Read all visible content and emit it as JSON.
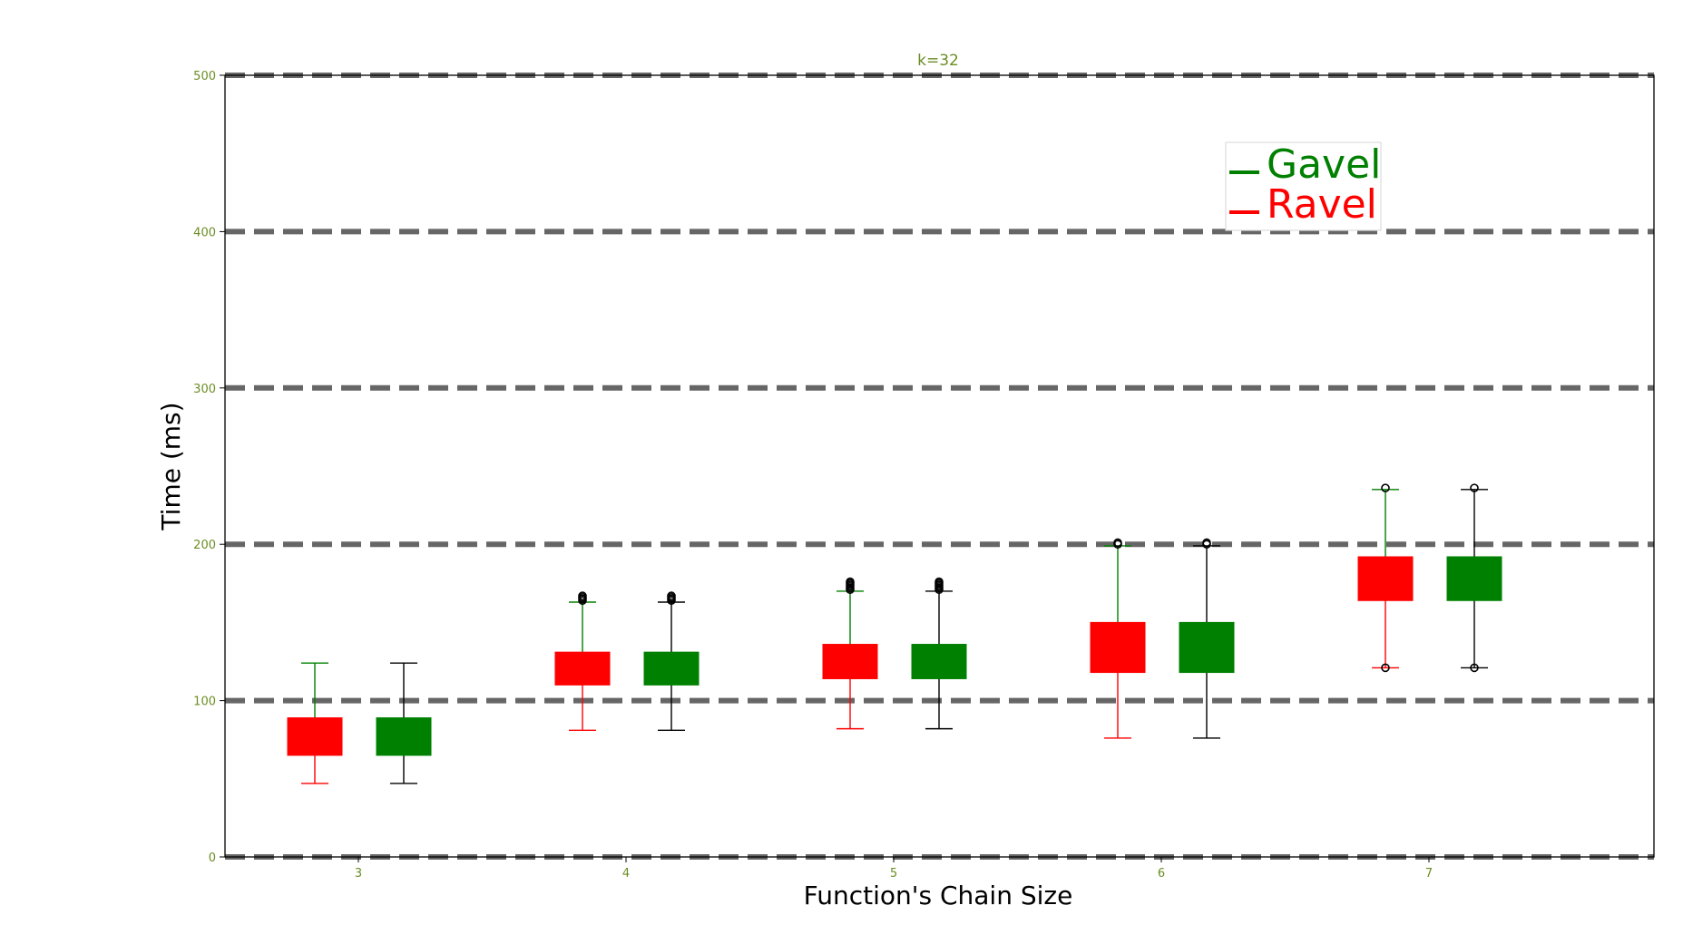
{
  "chart_data": {
    "type": "box",
    "title": "k=32",
    "xlabel": "Function's Chain Size",
    "ylabel": "Time (ms)",
    "ylim": [
      0,
      500
    ],
    "yticks": [
      0,
      100,
      200,
      300,
      400,
      500
    ],
    "categories": [
      "3",
      "4",
      "5",
      "6",
      "7"
    ],
    "grid": "horizontal dashed",
    "legend_placement": "upper-right",
    "colors": {
      "tick_label": "#6b8e23",
      "grid": "#666666",
      "Ravel": "#ff0000",
      "Gavel": "#008000",
      "whisker_black": "#000000"
    },
    "series": [
      {
        "name": "Ravel",
        "color": "#ff0000",
        "boxes": [
          {
            "category": "3",
            "whislo": 47,
            "q1": 65,
            "q3": 89,
            "whishi": 124,
            "fliers": []
          },
          {
            "category": "4",
            "whislo": 81,
            "q1": 110,
            "q3": 131,
            "whishi": 163,
            "fliers": [
              164,
              165,
              166,
              167
            ]
          },
          {
            "category": "5",
            "whislo": 82,
            "q1": 114,
            "q3": 136,
            "whishi": 170,
            "fliers": [
              171,
              172,
              173,
              174,
              175,
              176
            ]
          },
          {
            "category": "6",
            "whislo": 76,
            "q1": 118,
            "q3": 150,
            "whishi": 199,
            "fliers": [
              200,
              201
            ]
          },
          {
            "category": "7",
            "whislo": 121,
            "q1": 164,
            "q3": 192,
            "whishi": 235,
            "fliers": [
              121,
              236
            ]
          }
        ]
      },
      {
        "name": "Gavel",
        "color": "#008000",
        "boxes": [
          {
            "category": "3",
            "whislo": 47,
            "q1": 65,
            "q3": 89,
            "whishi": 124,
            "fliers": []
          },
          {
            "category": "4",
            "whislo": 81,
            "q1": 110,
            "q3": 131,
            "whishi": 163,
            "fliers": [
              164,
              165,
              166,
              167
            ]
          },
          {
            "category": "5",
            "whislo": 82,
            "q1": 114,
            "q3": 136,
            "whishi": 170,
            "fliers": [
              171,
              172,
              173,
              174,
              175,
              176
            ]
          },
          {
            "category": "6",
            "whislo": 76,
            "q1": 118,
            "q3": 150,
            "whishi": 199,
            "fliers": [
              200,
              201
            ]
          },
          {
            "category": "7",
            "whislo": 121,
            "q1": 164,
            "q3": 192,
            "whishi": 235,
            "fliers": [
              121,
              236
            ]
          }
        ]
      }
    ],
    "legend": [
      {
        "label": "Gavel",
        "color": "#008000"
      },
      {
        "label": "Ravel",
        "color": "#ff0000"
      }
    ]
  }
}
